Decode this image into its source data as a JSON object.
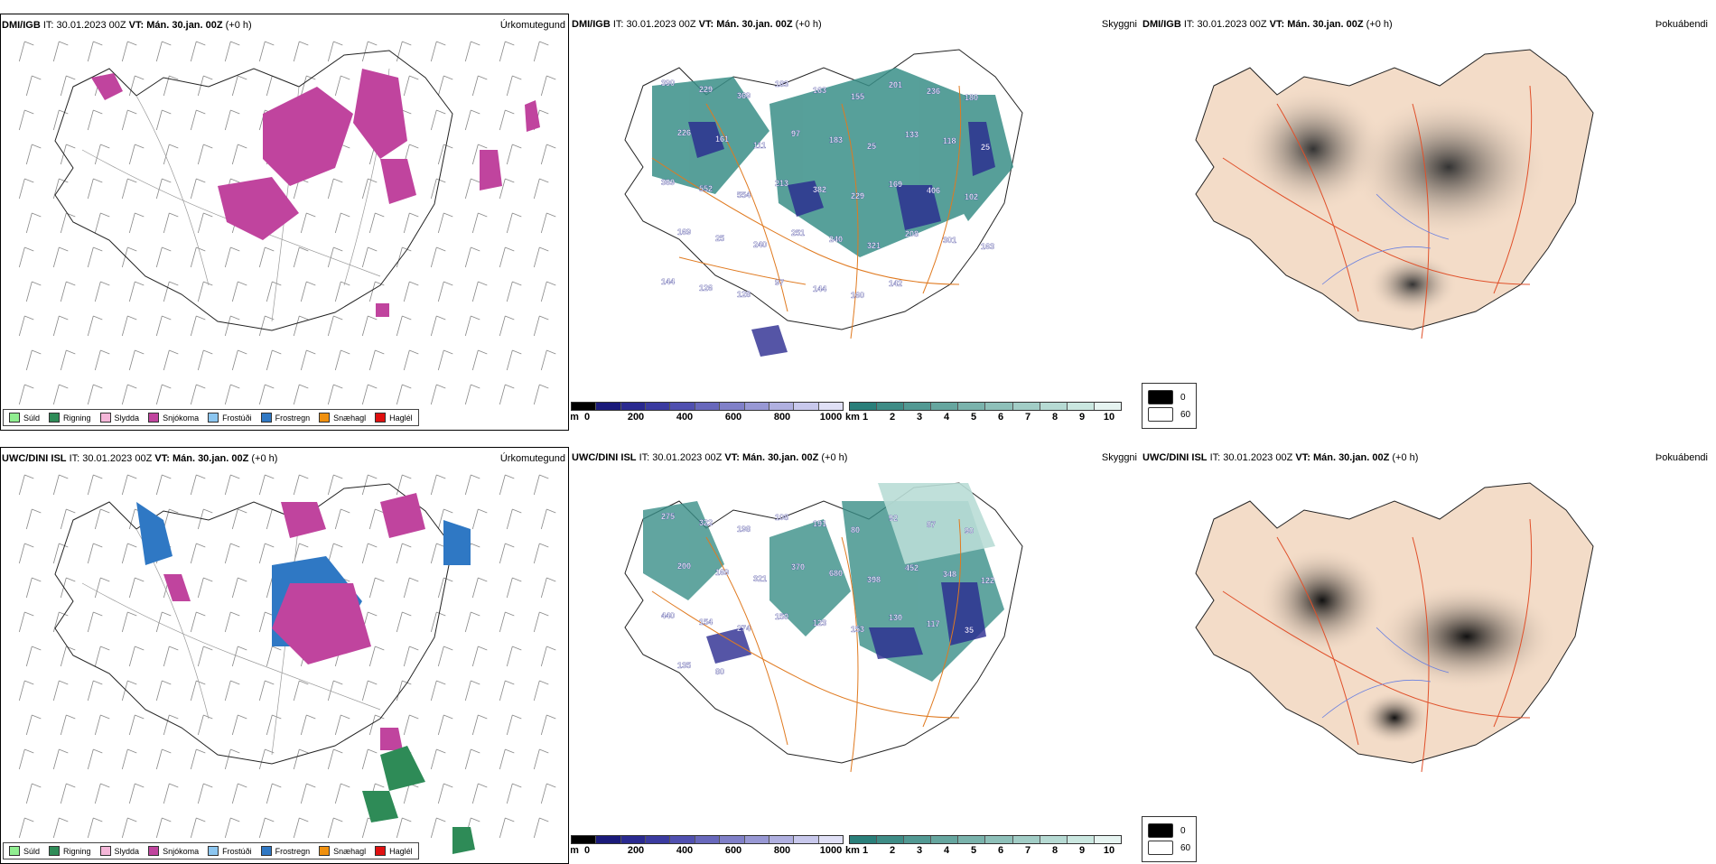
{
  "rows": [
    {
      "model": "DMI/IGB",
      "it_label": "IT:",
      "it": "30.01.2023 00Z",
      "vt_label": "VT:",
      "vt": "Mán. 30.jan. 00Z",
      "lead": "(+0 h)",
      "precip_title": "Úrkomutegund",
      "cloud_title": "Skyggni",
      "fog_title": "Þokuábendi",
      "cloud_labels": [
        "390",
        "229",
        "369",
        "183",
        "163",
        "155",
        "201",
        "236",
        "180",
        "226",
        "161",
        "111",
        "97",
        "183",
        "25",
        "133",
        "118",
        "25",
        "369",
        "552",
        "554",
        "213",
        "382",
        "229",
        "169",
        "406",
        "102",
        "169",
        "25",
        "240",
        "251",
        "240",
        "321",
        "208",
        "301",
        "163",
        "144",
        "126",
        "128",
        "97",
        "144",
        "160",
        "142"
      ]
    },
    {
      "model": "UWC/DINI ISL",
      "it_label": "IT:",
      "it": "30.01.2023 00Z",
      "vt_label": "VT:",
      "vt": "Mán. 30.jan. 00Z",
      "lead": "(+0 h)",
      "precip_title": "Úrkomutegund",
      "cloud_title": "Skyggni",
      "fog_title": "Þokuábendi",
      "cloud_labels": [
        "275",
        "322",
        "198",
        "108",
        "191",
        "80",
        "92",
        "87",
        "90",
        "200",
        "169",
        "321",
        "370",
        "680",
        "398",
        "452",
        "348",
        "122",
        "440",
        "154",
        "274",
        "150",
        "123",
        "153",
        "130",
        "117",
        "35",
        "135",
        "80"
      ]
    }
  ],
  "precip_legend": [
    {
      "label": "Súld",
      "color": "#90ee90"
    },
    {
      "label": "Rigning",
      "color": "#2e8b57"
    },
    {
      "label": "Slydda",
      "color": "#f4b6d8"
    },
    {
      "label": "Snjókoma",
      "color": "#c0449e"
    },
    {
      "label": "Frostúði",
      "color": "#8cc6f0"
    },
    {
      "label": "Frostregn",
      "color": "#2f78c4"
    },
    {
      "label": "Snæhagl",
      "color": "#f0900e"
    },
    {
      "label": "Haglél",
      "color": "#e01010"
    }
  ],
  "cloud_scale": {
    "unit": "m",
    "ticks": [
      "0",
      "200",
      "400",
      "600",
      "800",
      "1000"
    ],
    "colors": [
      "#000000",
      "#1a1a7a",
      "#2a2a90",
      "#3b3ba0",
      "#5050b0",
      "#6868bc",
      "#8080c8",
      "#9898d4",
      "#b0b0e0",
      "#c8c8ec",
      "#e0e0f6"
    ]
  },
  "vis_scale": {
    "unit": "km",
    "ticks": [
      "1",
      "2",
      "3",
      "4",
      "5",
      "6",
      "7",
      "8",
      "9",
      "10"
    ],
    "colors": [
      "#2a7f7a",
      "#3e8c86",
      "#529993",
      "#66a69f",
      "#7ab3ac",
      "#8ec0b9",
      "#a2cdc6",
      "#b6dad3",
      "#cae7e0",
      "#e6f4f1"
    ]
  },
  "fog_legend": [
    {
      "label": "0",
      "color": "#000000"
    },
    {
      "label": "60",
      "color": "#ffffff"
    }
  ]
}
